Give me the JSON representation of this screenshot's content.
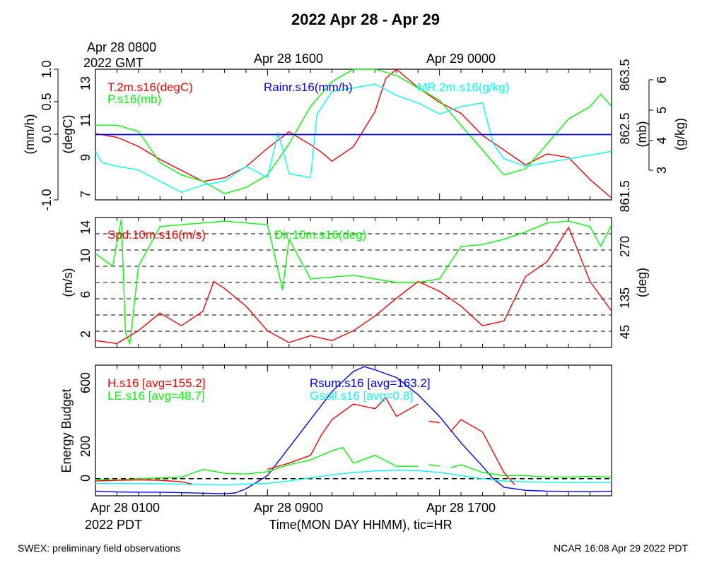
{
  "title": "2022 Apr 28 - Apr 29",
  "top_axis": {
    "labels": [
      "Apr 28 0800",
      "Apr 28 1600",
      "Apr 29 0000"
    ],
    "sublabel": "2022 GMT"
  },
  "bottom_axis": {
    "labels": [
      "Apr 28 0100",
      "Apr 28 0900",
      "Apr 28 1700"
    ],
    "sublabel": "2022 PDT",
    "title": "Time(MON DAY HHMM), tic=HR"
  },
  "footer": {
    "left": "SWEX: preliminary field observations",
    "right": "NCAR 16:08 Apr 29 2022 PDT"
  },
  "chart_data": [
    {
      "type": "line",
      "panel": "temperature-pressure-rain-mixing",
      "x_hours_pdt": [
        0,
        24
      ],
      "left_axes": [
        {
          "label": "(mm/h)",
          "ylim": [
            -1.0,
            1.0
          ],
          "ticks": [
            "-1.0",
            "0.0",
            "0.5",
            "1.0"
          ]
        },
        {
          "label": "(degC)",
          "ylim": [
            6.7,
            13.8
          ],
          "ticks": [
            "7",
            "9",
            "11",
            "13"
          ]
        }
      ],
      "right_axes": [
        {
          "label": "(mb)",
          "ylim": [
            861.4,
            863.5
          ],
          "ticks": [
            "861.5",
            "862.5",
            "863.5"
          ]
        },
        {
          "label": "(g/kg)",
          "ylim": [
            2.7,
            6.2
          ],
          "ticks": [
            "3",
            "4",
            "5",
            "6"
          ]
        }
      ],
      "series": [
        {
          "name": "T.2m.s16(degC)",
          "color": "#ff0000",
          "x": [
            0,
            1,
            2,
            3,
            4,
            5,
            6,
            7,
            8,
            9,
            10,
            10.5,
            11,
            12,
            13,
            13.5,
            14,
            15,
            16,
            17,
            18,
            19,
            20,
            21,
            22,
            23,
            24
          ],
          "values": [
            10.3,
            10.1,
            9.6,
            8.9,
            8.3,
            7.7,
            7.9,
            8.5,
            9.5,
            10.4,
            9.7,
            9.3,
            8.8,
            9.6,
            11.5,
            13.3,
            13.8,
            12.8,
            12.0,
            11.4,
            10.2,
            9.4,
            8.6,
            9.2,
            9.0,
            7.8,
            6.8
          ]
        },
        {
          "name": "P.s16(mb)",
          "color": "#00ff00",
          "x": [
            0,
            1,
            2,
            3,
            4,
            5,
            6,
            7,
            8,
            9,
            10,
            11,
            12,
            13,
            14,
            15,
            16,
            17,
            18,
            19,
            20,
            21,
            22,
            23,
            23.5,
            24
          ],
          "values": [
            862.6,
            862.6,
            862.5,
            862.0,
            861.8,
            861.7,
            861.5,
            861.6,
            861.8,
            862.3,
            862.9,
            863.3,
            863.5,
            863.5,
            863.4,
            863.2,
            863.0,
            862.6,
            862.2,
            861.8,
            861.9,
            862.3,
            862.7,
            862.9,
            863.1,
            862.9
          ]
        },
        {
          "name": "Rainr.s16(mm/h)",
          "color": "#0000ff",
          "x": [
            0,
            24
          ],
          "values": [
            0.0,
            0.0
          ]
        },
        {
          "name": "MR.2m.s16(g/kg)",
          "color": "#00ffff",
          "x": [
            0,
            0.3,
            1,
            2,
            3,
            4,
            5,
            6,
            7,
            8,
            8.5,
            9,
            10,
            10.3,
            11,
            12,
            13,
            14,
            15,
            16,
            17,
            18,
            18.5,
            19,
            20,
            21,
            22,
            23,
            24
          ],
          "values": [
            4.0,
            3.7,
            3.6,
            3.5,
            3.2,
            2.9,
            3.1,
            3.2,
            3.6,
            3.3,
            4.5,
            3.4,
            3.3,
            5.0,
            5.6,
            5.7,
            5.8,
            5.5,
            5.3,
            5.0,
            5.2,
            5.3,
            4.2,
            3.8,
            3.6,
            3.7,
            3.8,
            3.9,
            4.0
          ]
        }
      ]
    },
    {
      "type": "line",
      "panel": "wind",
      "x_hours_pdt": [
        0,
        24
      ],
      "left_axis": {
        "label": "(m/s)",
        "ylim": [
          0.8,
          14
        ],
        "ticks": [
          "2",
          "6",
          "10",
          "14"
        ]
      },
      "right_axis": {
        "label": "(deg)",
        "ylim": [
          0,
          360
        ],
        "ticks": [
          "45",
          "135",
          "270"
        ],
        "grid_lines_deg": [
          45,
          90,
          135,
          180,
          225,
          270,
          315,
          360
        ]
      },
      "series": [
        {
          "name": "Spd.10m.s16(m/s)",
          "color": "#ff0000",
          "x": [
            0,
            1,
            2,
            3,
            4,
            5,
            5.5,
            6,
            7,
            8,
            9,
            10,
            11,
            12,
            13,
            14,
            15,
            16,
            17,
            18,
            19,
            20,
            21,
            22,
            23,
            24
          ],
          "values": [
            1.5,
            1.2,
            2.5,
            4.3,
            3.0,
            4.5,
            7.5,
            6.8,
            5.0,
            2.5,
            1.3,
            2.0,
            1.5,
            2.5,
            4.0,
            5.8,
            7.5,
            6.5,
            5.0,
            3.0,
            3.5,
            8.0,
            9.5,
            13.0,
            7.5,
            4.5
          ]
        },
        {
          "name": "Dir.10m.s16(deg)",
          "color": "#00ff00",
          "x": [
            0,
            0.8,
            1.2,
            1.4,
            1.6,
            2,
            3,
            4,
            5,
            6,
            7,
            8,
            8.7,
            9,
            10,
            11,
            12,
            13,
            14,
            15,
            16,
            17,
            18,
            19,
            20,
            21,
            22,
            23,
            23.5,
            24
          ],
          "values": [
            260,
            225,
            355,
            40,
            10,
            225,
            335,
            340,
            345,
            350,
            345,
            340,
            160,
            300,
            190,
            195,
            200,
            190,
            180,
            180,
            190,
            280,
            285,
            300,
            320,
            345,
            350,
            335,
            280,
            340
          ]
        }
      ]
    },
    {
      "type": "line",
      "panel": "energy-budget",
      "x_hours_pdt": [
        0,
        24
      ],
      "left_axis": {
        "label": "Energy Budget",
        "ylim": [
          -110,
          730
        ],
        "ticks": [
          "0",
          "200",
          "600"
        ]
      },
      "grid_lines": [
        0
      ],
      "series": [
        {
          "name": "H.s16 [avg=155.2]",
          "color": "#ff0000",
          "x": [
            0,
            1,
            2,
            3,
            4,
            4.5,
            null,
            8,
            9,
            10,
            10.5,
            11,
            12,
            13,
            13.5,
            14,
            15,
            null,
            15.5,
            16,
            null,
            16.5,
            17,
            18,
            19,
            19.5
          ],
          "values": [
            -15,
            -10,
            -8,
            -10,
            -20,
            -35,
            null,
            60,
            100,
            150,
            280,
            380,
            480,
            450,
            520,
            400,
            480,
            null,
            370,
            360,
            null,
            300,
            380,
            300,
            40,
            -40
          ]
        },
        {
          "name": "LE.s16 [avg=48.7]",
          "color": "#00ff00",
          "x": [
            0,
            1,
            2,
            3,
            4,
            5,
            6,
            7,
            8,
            9,
            10,
            11,
            11.5,
            12,
            13,
            14,
            15,
            null,
            15.5,
            16,
            null,
            16.5,
            17,
            18,
            19,
            20,
            21,
            22,
            23,
            24
          ],
          "values": [
            -5,
            -10,
            0,
            5,
            10,
            60,
            35,
            30,
            45,
            90,
            120,
            180,
            200,
            100,
            150,
            80,
            80,
            null,
            90,
            80,
            null,
            70,
            90,
            40,
            20,
            20,
            10,
            10,
            15,
            10
          ]
        },
        {
          "name": "Rsum.s16 [avg=163.2]",
          "color": "#0000ff",
          "x": [
            0,
            1,
            2,
            3,
            4,
            5,
            6,
            6.5,
            7,
            8,
            9,
            10,
            11,
            12,
            12.5,
            13,
            14,
            15,
            16,
            17,
            18,
            18.5,
            19,
            20,
            21,
            22,
            23,
            24
          ],
          "values": [
            -80,
            -85,
            -87,
            -87,
            -90,
            -93,
            -97,
            -92,
            -65,
            20,
            200,
            380,
            560,
            690,
            720,
            700,
            650,
            540,
            400,
            230,
            80,
            0,
            -55,
            -75,
            -80,
            -82,
            -83,
            -80
          ]
        },
        {
          "name": "Gsoil.s16 [avg=0.8]",
          "color": "#00ffff",
          "x": [
            0,
            2,
            4,
            6,
            7,
            8,
            9,
            10,
            11,
            12,
            13,
            14,
            15,
            16,
            17,
            18,
            19,
            20,
            22,
            24
          ],
          "values": [
            -30,
            -30,
            -35,
            -40,
            -35,
            -30,
            -15,
            5,
            25,
            40,
            50,
            55,
            52,
            40,
            20,
            0,
            -15,
            -20,
            -25,
            -25
          ]
        }
      ]
    }
  ]
}
